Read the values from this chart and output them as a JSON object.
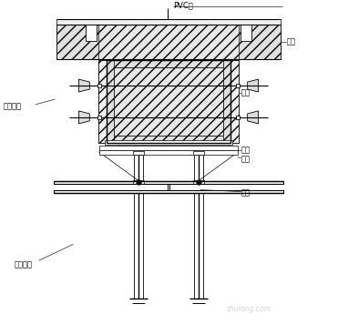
{
  "bg_color": "#ffffff",
  "line_color": "#000000",
  "label_PVC": "PVC管",
  "label_fangmu1": "方木",
  "label_pemu": "坯木",
  "label_duola": "对拉螺栓",
  "label_gongzi": "工字钢打",
  "label_fangmu2": "方木",
  "label_fangmu3": "方木",
  "label_fangmu4": "方木",
  "watermark": "zhulong.com",
  "hatch_fill": "#d8d8d8",
  "hatch_light": "#eeeeee"
}
